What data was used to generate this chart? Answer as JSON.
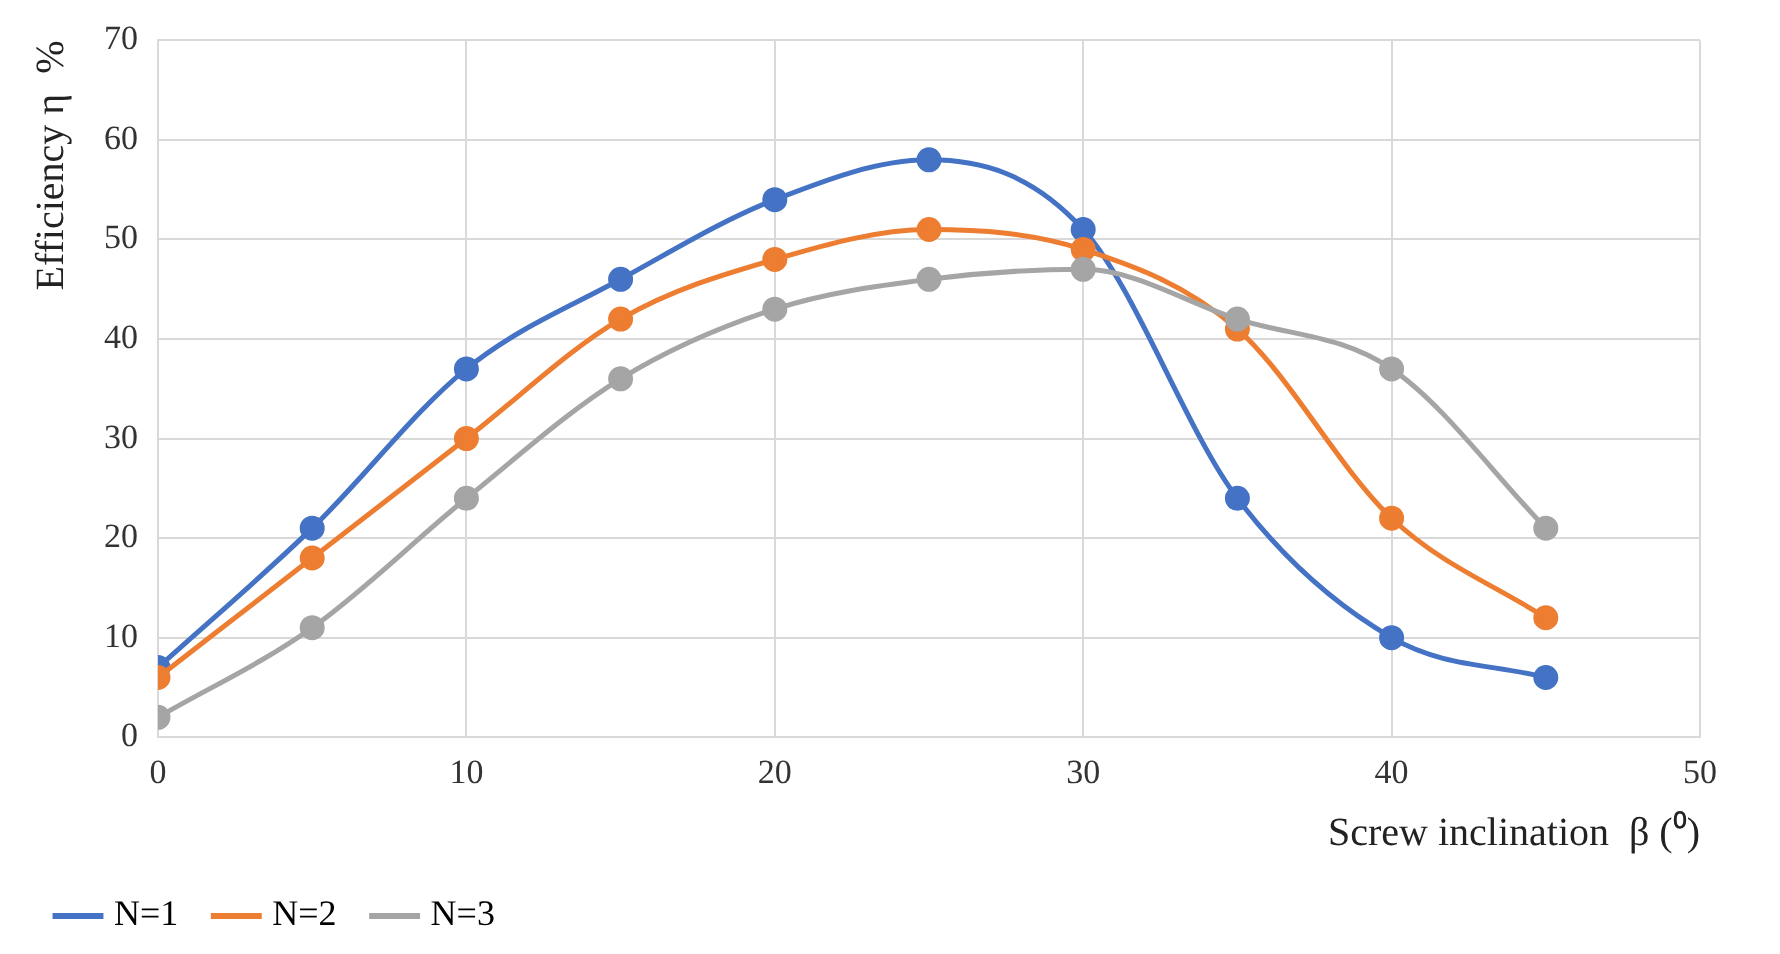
{
  "chart_data": {
    "type": "line",
    "xlabel": "Screw inclination  β (⁰)",
    "ylabel": "Efficiency η  %",
    "x": [
      0,
      5,
      10,
      15,
      20,
      25,
      30,
      35,
      40,
      45
    ],
    "series": [
      {
        "name": "N=1",
        "color": "#4472c4",
        "values": [
          7,
          21,
          37,
          46,
          54,
          58,
          51,
          24,
          10,
          6
        ]
      },
      {
        "name": "N=2",
        "color": "#ed7d31",
        "values": [
          6,
          18,
          30,
          42,
          48,
          51,
          49,
          41,
          22,
          12
        ]
      },
      {
        "name": "N=3",
        "color": "#a5a5a5",
        "values": [
          2,
          11,
          24,
          36,
          43,
          46,
          47,
          42,
          37,
          21
        ]
      }
    ],
    "xlim": [
      0,
      50
    ],
    "xticks": [
      0,
      10,
      20,
      30,
      40,
      50
    ],
    "ylim": [
      0,
      70
    ],
    "yticks": [
      0,
      10,
      20,
      30,
      40,
      50,
      60,
      70
    ],
    "grid": true,
    "legend": "bottom left",
    "marker": "circle",
    "line_style": "solid"
  }
}
